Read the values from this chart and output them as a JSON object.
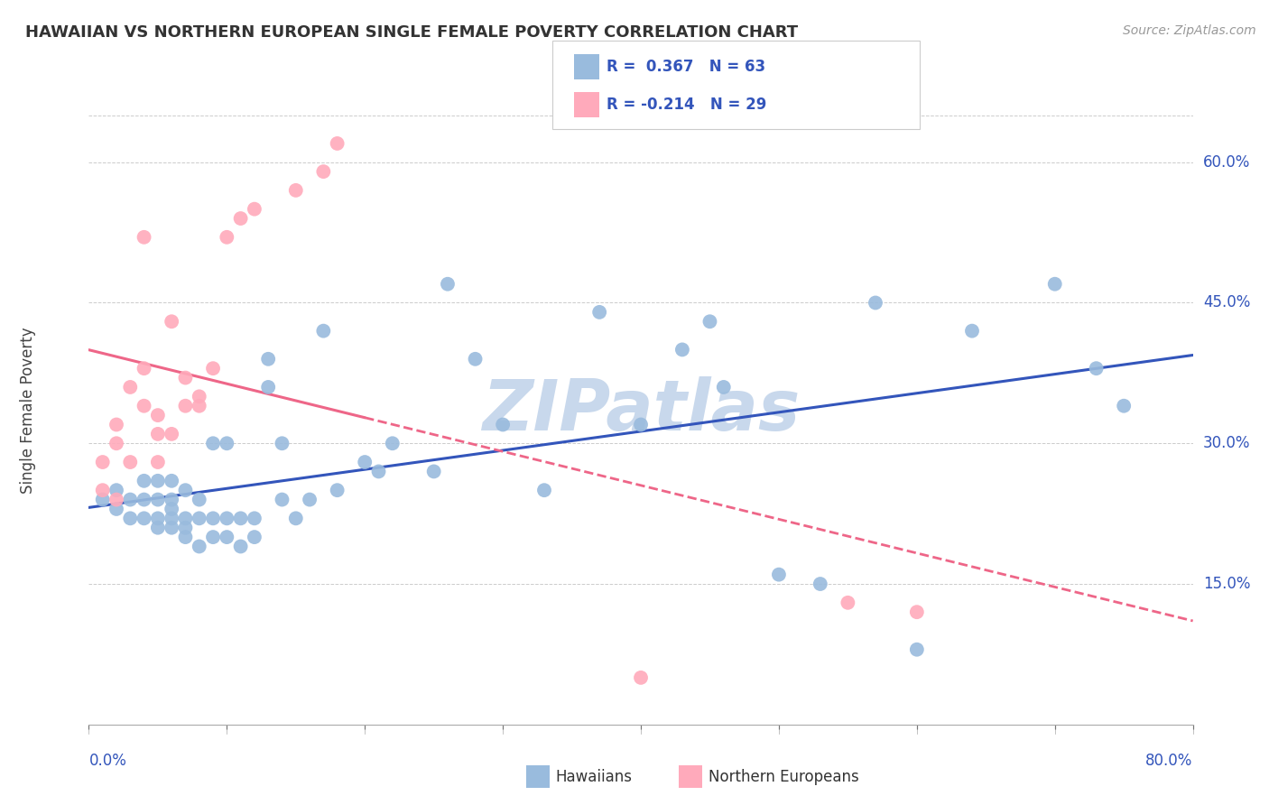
{
  "title": "HAWAIIAN VS NORTHERN EUROPEAN SINGLE FEMALE POVERTY CORRELATION CHART",
  "source": "Source: ZipAtlas.com",
  "ylabel": "Single Female Poverty",
  "ytick_labels": [
    "15.0%",
    "30.0%",
    "45.0%",
    "60.0%"
  ],
  "ytick_values": [
    0.15,
    0.3,
    0.45,
    0.6
  ],
  "xlim": [
    0.0,
    0.8
  ],
  "ylim": [
    0.0,
    0.67
  ],
  "legend_blue_r": "R =  0.367",
  "legend_blue_n": "N = 63",
  "legend_pink_r": "R = -0.214",
  "legend_pink_n": "N = 29",
  "legend_label_blue": "Hawaiians",
  "legend_label_pink": "Northern Europeans",
  "blue_color": "#99BBDD",
  "pink_color": "#FFAABB",
  "trendline_blue_color": "#3355BB",
  "trendline_pink_color": "#EE6688",
  "watermark_color": "#C8D8EC",
  "grid_color": "#CCCCCC",
  "blue_scatter_x": [
    0.01,
    0.02,
    0.02,
    0.03,
    0.03,
    0.04,
    0.04,
    0.04,
    0.05,
    0.05,
    0.05,
    0.05,
    0.06,
    0.06,
    0.06,
    0.06,
    0.06,
    0.07,
    0.07,
    0.07,
    0.07,
    0.08,
    0.08,
    0.08,
    0.09,
    0.09,
    0.09,
    0.1,
    0.1,
    0.1,
    0.11,
    0.11,
    0.12,
    0.12,
    0.13,
    0.13,
    0.14,
    0.14,
    0.15,
    0.16,
    0.17,
    0.18,
    0.2,
    0.21,
    0.22,
    0.25,
    0.26,
    0.28,
    0.3,
    0.33,
    0.37,
    0.4,
    0.43,
    0.45,
    0.46,
    0.5,
    0.53,
    0.57,
    0.6,
    0.64,
    0.7,
    0.73,
    0.75
  ],
  "blue_scatter_y": [
    0.24,
    0.23,
    0.25,
    0.22,
    0.24,
    0.22,
    0.24,
    0.26,
    0.21,
    0.22,
    0.24,
    0.26,
    0.21,
    0.22,
    0.23,
    0.24,
    0.26,
    0.2,
    0.21,
    0.22,
    0.25,
    0.19,
    0.22,
    0.24,
    0.2,
    0.22,
    0.3,
    0.2,
    0.22,
    0.3,
    0.19,
    0.22,
    0.2,
    0.22,
    0.36,
    0.39,
    0.24,
    0.3,
    0.22,
    0.24,
    0.42,
    0.25,
    0.28,
    0.27,
    0.3,
    0.27,
    0.47,
    0.39,
    0.32,
    0.25,
    0.44,
    0.32,
    0.4,
    0.43,
    0.36,
    0.16,
    0.15,
    0.45,
    0.08,
    0.42,
    0.47,
    0.38,
    0.34
  ],
  "pink_scatter_x": [
    0.01,
    0.01,
    0.02,
    0.02,
    0.02,
    0.03,
    0.03,
    0.04,
    0.04,
    0.04,
    0.05,
    0.05,
    0.05,
    0.06,
    0.06,
    0.07,
    0.07,
    0.08,
    0.08,
    0.09,
    0.1,
    0.11,
    0.12,
    0.15,
    0.17,
    0.18,
    0.4,
    0.55,
    0.6
  ],
  "pink_scatter_y": [
    0.25,
    0.28,
    0.24,
    0.3,
    0.32,
    0.28,
    0.36,
    0.34,
    0.38,
    0.52,
    0.28,
    0.31,
    0.33,
    0.31,
    0.43,
    0.34,
    0.37,
    0.34,
    0.35,
    0.38,
    0.52,
    0.54,
    0.55,
    0.57,
    0.59,
    0.62,
    0.05,
    0.13,
    0.12
  ]
}
